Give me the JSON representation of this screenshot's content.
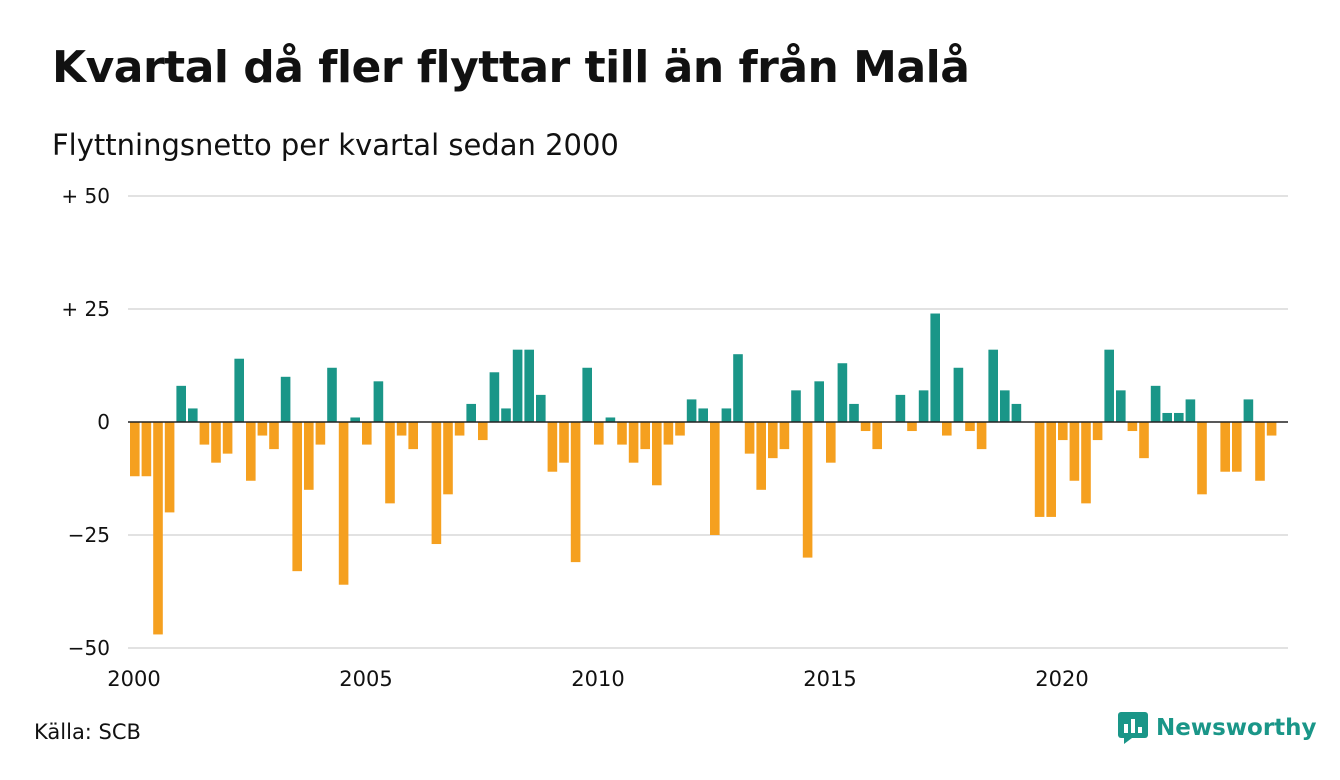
{
  "title": "Kvartal då fler flyttar till än från Malå",
  "subtitle": "Flyttningsnetto per kvartal sedan 2000",
  "source": "Källa: SCB",
  "brand": "Newsworthy",
  "colors": {
    "positive": "#1a9688",
    "negative": "#f5a01f",
    "grid": "#e2e2e2",
    "zero_line": "#222222",
    "brand": "#1a9688"
  },
  "chart_data": {
    "type": "bar",
    "x_start": 2000,
    "x_step": 0.25,
    "ylim": [
      -50,
      50
    ],
    "xlim": [
      2000,
      2025
    ],
    "yticks": [
      {
        "value": 50,
        "label": "+ 50"
      },
      {
        "value": 25,
        "label": "+ 25"
      },
      {
        "value": 0,
        "label": "0"
      },
      {
        "value": -25,
        "label": "−25"
      },
      {
        "value": -50,
        "label": "−50"
      }
    ],
    "xticks": [
      {
        "value": 2000,
        "label": "2000"
      },
      {
        "value": 2005,
        "label": "2005"
      },
      {
        "value": 2010,
        "label": "2010"
      },
      {
        "value": 2015,
        "label": "2015"
      },
      {
        "value": 2020,
        "label": "2020"
      }
    ],
    "values": [
      -12,
      -12,
      -47,
      -20,
      8,
      3,
      -5,
      -9,
      -7,
      14,
      -13,
      -3,
      -6,
      10,
      -33,
      -15,
      -5,
      12,
      -36,
      1,
      -5,
      9,
      -18,
      -3,
      -6,
      0,
      -27,
      -16,
      -3,
      4,
      -4,
      11,
      3,
      16,
      16,
      6,
      -11,
      -9,
      -31,
      12,
      -5,
      1,
      -5,
      -9,
      -6,
      -14,
      -5,
      -3,
      5,
      3,
      -25,
      3,
      15,
      -7,
      -15,
      -8,
      -6,
      7,
      -30,
      9,
      -9,
      13,
      4,
      -2,
      -6,
      0,
      6,
      -2,
      7,
      24,
      -3,
      12,
      -2,
      -6,
      16,
      7,
      4,
      0,
      -21,
      -21,
      -4,
      -13,
      -18,
      -4,
      16,
      7,
      -2,
      -8,
      8,
      2,
      2,
      5,
      -16,
      0,
      -11,
      -11,
      5,
      -13,
      -3
    ]
  }
}
